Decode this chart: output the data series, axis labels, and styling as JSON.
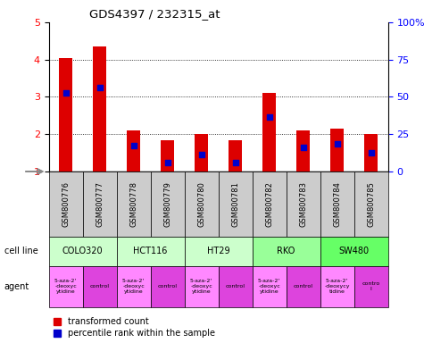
{
  "title": "GDS4397 / 232315_at",
  "samples": [
    "GSM800776",
    "GSM800777",
    "GSM800778",
    "GSM800779",
    "GSM800780",
    "GSM800781",
    "GSM800782",
    "GSM800783",
    "GSM800784",
    "GSM800785"
  ],
  "red_values": [
    4.05,
    4.35,
    2.1,
    1.85,
    2.0,
    1.85,
    3.1,
    2.1,
    2.15,
    2.0
  ],
  "blue_values": [
    3.1,
    3.25,
    1.7,
    1.25,
    1.45,
    1.25,
    2.45,
    1.65,
    1.75,
    1.5
  ],
  "ylim": [
    1,
    5
  ],
  "yticks": [
    1,
    2,
    3,
    4,
    5
  ],
  "y2ticks": [
    0,
    25,
    50,
    75,
    100
  ],
  "y2ticklabels": [
    "0",
    "25",
    "50",
    "75",
    "100%"
  ],
  "cell_lines": [
    {
      "label": "COLO320",
      "start": 0,
      "end": 2,
      "color": "#ccffcc"
    },
    {
      "label": "HCT116",
      "start": 2,
      "end": 4,
      "color": "#ccffcc"
    },
    {
      "label": "HT29",
      "start": 4,
      "end": 6,
      "color": "#ccffcc"
    },
    {
      "label": "RKO",
      "start": 6,
      "end": 8,
      "color": "#99ff99"
    },
    {
      "label": "SW480",
      "start": 8,
      "end": 10,
      "color": "#66ff66"
    }
  ],
  "agents": [
    {
      "label": "5-aza-2'\n-deoxyc\nytidine",
      "start": 0,
      "end": 1,
      "color": "#ff88ff"
    },
    {
      "label": "control",
      "start": 1,
      "end": 2,
      "color": "#dd44dd"
    },
    {
      "label": "5-aza-2'\n-deoxyc\nytidine",
      "start": 2,
      "end": 3,
      "color": "#ff88ff"
    },
    {
      "label": "control",
      "start": 3,
      "end": 4,
      "color": "#dd44dd"
    },
    {
      "label": "5-aza-2'\n-deoxyc\nytidine",
      "start": 4,
      "end": 5,
      "color": "#ff88ff"
    },
    {
      "label": "control",
      "start": 5,
      "end": 6,
      "color": "#dd44dd"
    },
    {
      "label": "5-aza-2'\n-deoxyc\nytidine",
      "start": 6,
      "end": 7,
      "color": "#ff88ff"
    },
    {
      "label": "control",
      "start": 7,
      "end": 8,
      "color": "#dd44dd"
    },
    {
      "label": "5-aza-2'\n-deoxycy\ntidine",
      "start": 8,
      "end": 9,
      "color": "#ff88ff"
    },
    {
      "label": "contro\nl",
      "start": 9,
      "end": 10,
      "color": "#dd44dd"
    }
  ],
  "bar_width": 0.4,
  "bar_color": "#dd0000",
  "blue_color": "#0000cc",
  "sample_bg": "#cccccc",
  "legend_red": "transformed count",
  "legend_blue": "percentile rank within the sample"
}
